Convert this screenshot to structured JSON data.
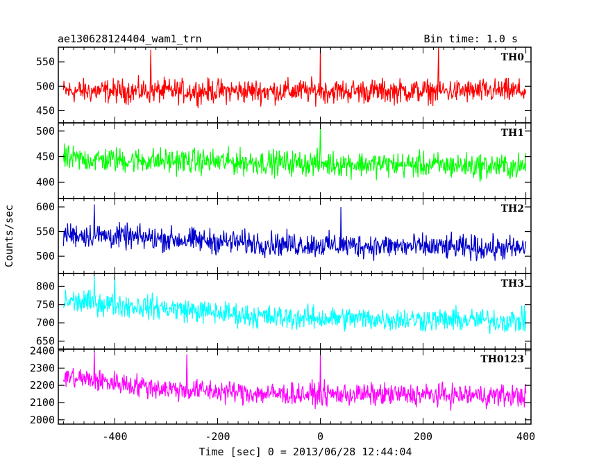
{
  "header": {
    "title": "ae130628124404_wam1_trn",
    "bin_time": "Bin time: 1.0 s"
  },
  "chart_data": {
    "type": "line",
    "xlabel": "Time [sec] 0 = 2013/06/28 12:44:04",
    "ylabel": "Counts/sec",
    "xlim": [
      -510,
      410
    ],
    "xticks": [
      -400,
      -200,
      0,
      200,
      400
    ],
    "panels": [
      {
        "name": "TH0",
        "color": "#ff0000",
        "ylim": [
          425,
          580
        ],
        "yticks": [
          450,
          500,
          550
        ],
        "series": {
          "trend": [
            [
              -500,
              490
            ],
            [
              400,
              490
            ]
          ],
          "amplitude": 32,
          "spikes": [
            [
              -330,
              575
            ],
            [
              0,
              580
            ],
            [
              230,
              580
            ]
          ]
        }
      },
      {
        "name": "TH1",
        "color": "#00ff00",
        "ylim": [
          368,
          516
        ],
        "yticks": [
          400,
          450,
          500
        ],
        "series": {
          "trend": [
            [
              -500,
              445
            ],
            [
              400,
              430
            ]
          ],
          "amplitude": 32,
          "spikes": [
            [
              0,
              505
            ]
          ]
        }
      },
      {
        "name": "TH2",
        "color": "#0000cc",
        "ylim": [
          465,
          617
        ],
        "yticks": [
          500,
          550,
          600
        ],
        "series": {
          "trend": [
            [
              -500,
              545
            ],
            [
              -100,
              525
            ],
            [
              400,
              515
            ]
          ],
          "amplitude": 32,
          "spikes": [
            [
              -440,
              605
            ],
            [
              40,
              600
            ]
          ]
        }
      },
      {
        "name": "TH3",
        "color": "#00ffff",
        "ylim": [
          628,
          835
        ],
        "yticks": [
          650,
          700,
          750,
          800
        ],
        "series": {
          "trend": [
            [
              -500,
              760
            ],
            [
              -300,
              740
            ],
            [
              -100,
              715
            ],
            [
              400,
              705
            ]
          ],
          "amplitude": 42,
          "spikes": [
            [
              -440,
              830
            ],
            [
              -400,
              830
            ]
          ]
        }
      },
      {
        "name": "TH0123",
        "color": "#ff00ff",
        "ylim": [
          1975,
          2410
        ],
        "yticks": [
          2000,
          2100,
          2200,
          2300,
          2400
        ],
        "series": {
          "trend": [
            [
              -500,
              2250
            ],
            [
              -300,
              2180
            ],
            [
              -100,
              2150
            ],
            [
              400,
              2140
            ]
          ],
          "amplitude": 85,
          "spikes": [
            [
              -440,
              2400
            ],
            [
              -260,
              2380
            ],
            [
              0,
              2380
            ]
          ]
        }
      }
    ]
  }
}
